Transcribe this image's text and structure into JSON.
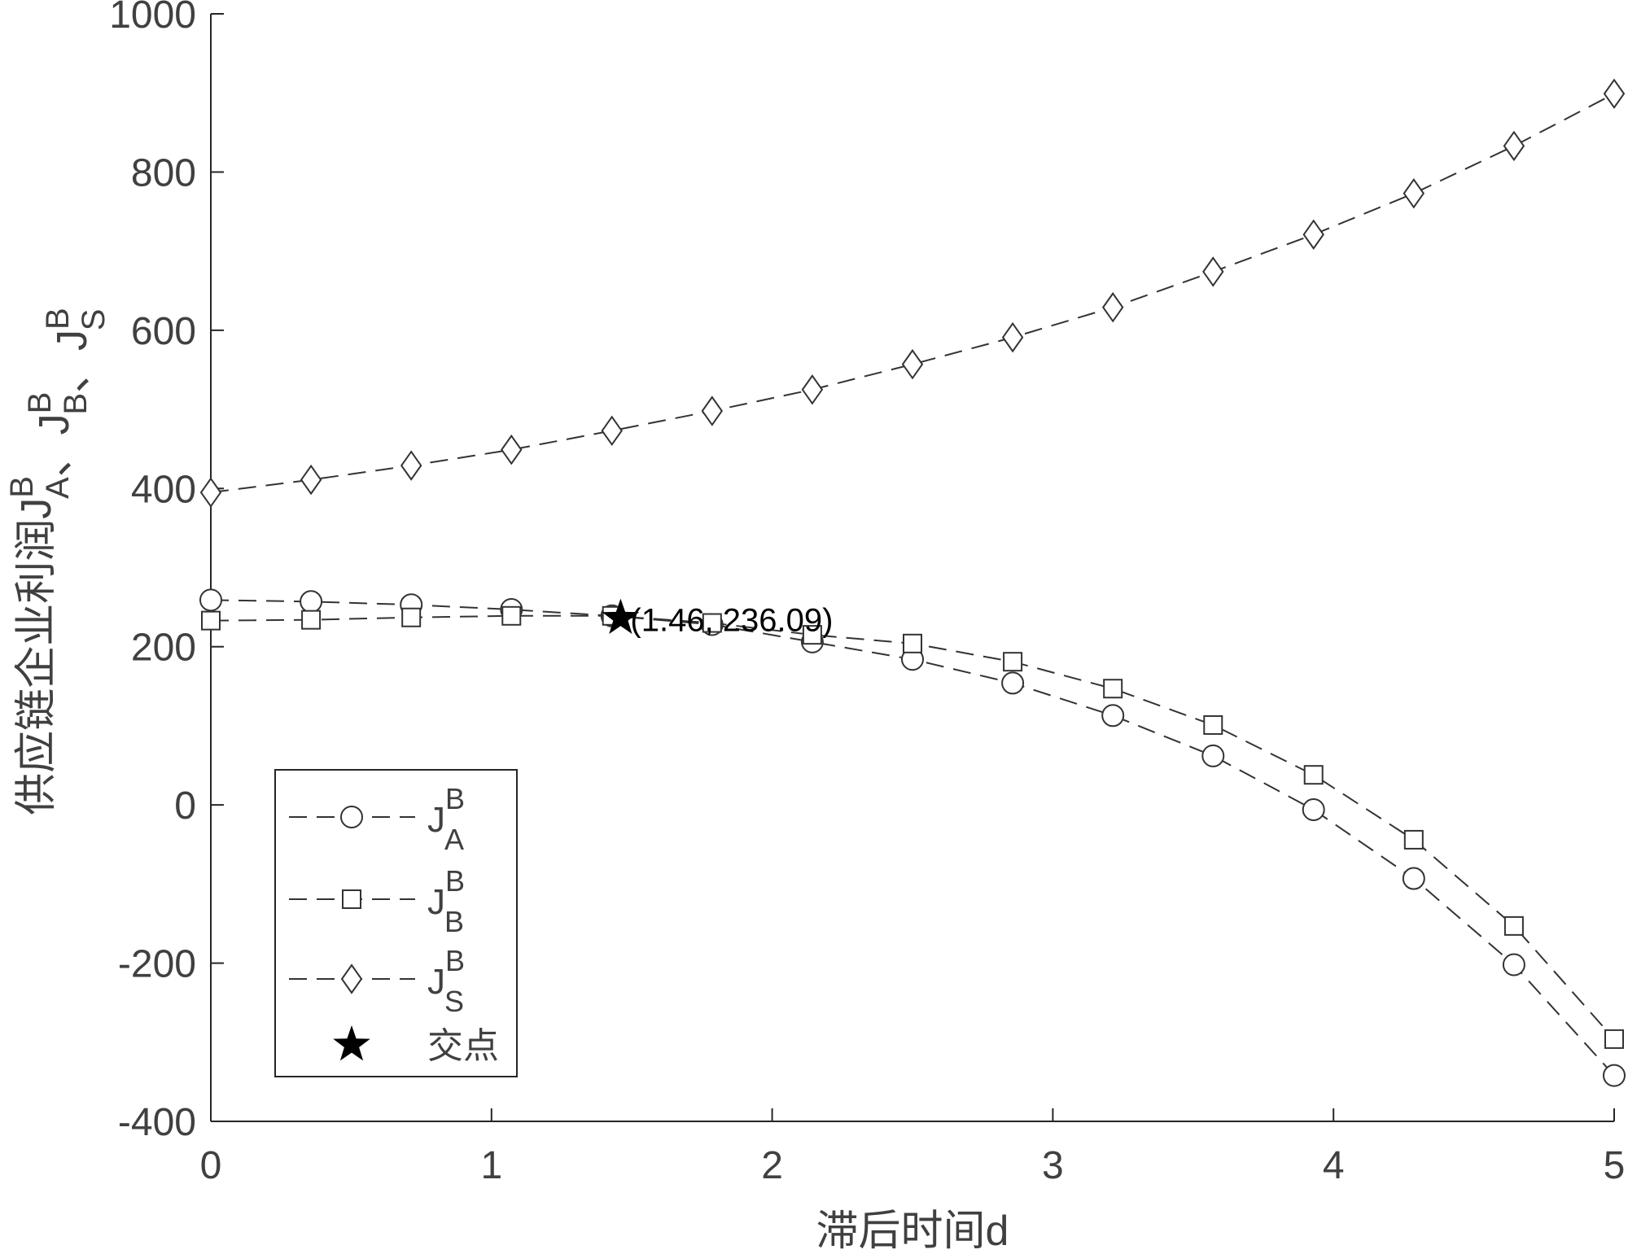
{
  "chart_data": {
    "type": "line",
    "xlabel": "滞后时间d",
    "ylabel_parts": [
      "供应链企业利润J",
      {
        "sup": "B",
        "sub": "A"
      },
      "、J",
      {
        "sup": "B",
        "sub": "B"
      },
      "、J",
      {
        "sup": "B",
        "sub": "S"
      }
    ],
    "x": [
      0,
      0.357,
      0.714,
      1.071,
      1.429,
      1.786,
      2.143,
      2.5,
      2.857,
      3.214,
      3.571,
      3.929,
      4.286,
      4.643,
      5
    ],
    "series": [
      {
        "name": "J",
        "name_sup": "B",
        "name_sub": "A",
        "marker": "circle",
        "color": "#333333",
        "values": [
          259,
          257,
          253,
          247,
          239,
          228,
          206,
          184,
          154,
          113,
          62,
          -6,
          -93,
          -202,
          -342
        ]
      },
      {
        "name": "J",
        "name_sup": "B",
        "name_sub": "B",
        "marker": "square",
        "color": "#333333",
        "values": [
          233,
          234,
          237,
          239,
          239,
          230,
          215,
          204,
          181,
          147,
          101,
          38,
          -44,
          -153,
          -296
        ]
      },
      {
        "name": "J",
        "name_sup": "B",
        "name_sub": "S",
        "marker": "diamond",
        "color": "#333333",
        "values": [
          395,
          411,
          429,
          449,
          473,
          498,
          525,
          557,
          591,
          629,
          674,
          721,
          773,
          833,
          899
        ]
      }
    ],
    "intersection": {
      "name": "交点",
      "x": 1.46,
      "y": 236.09,
      "label": "(1.46, 236.09)",
      "color": "#000000"
    },
    "xlim": [
      0,
      5
    ],
    "xticks": [
      0,
      1,
      2,
      3,
      4,
      5
    ],
    "ylim": [
      -400,
      1000
    ],
    "yticks": [
      -400,
      -200,
      0,
      200,
      400,
      600,
      800,
      1000
    ],
    "legend": "lower left",
    "grid": false
  }
}
